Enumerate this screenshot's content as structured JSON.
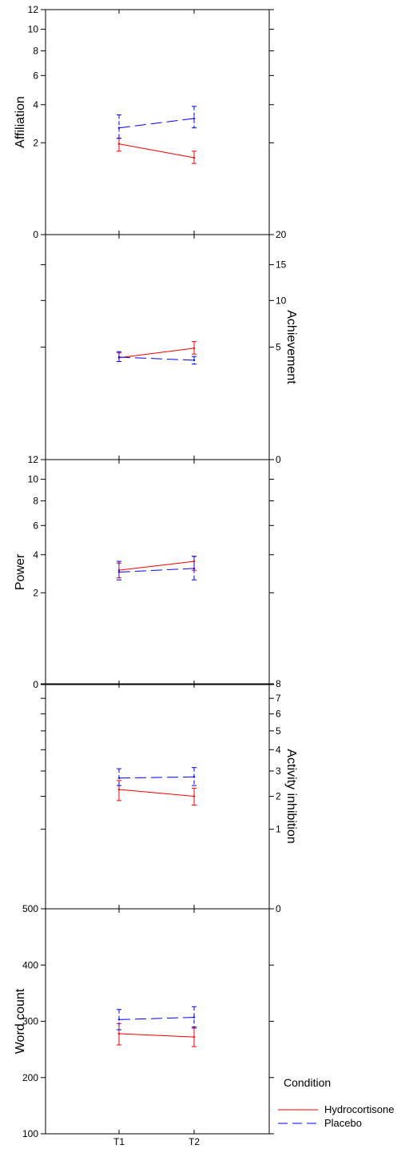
{
  "chart_data": {
    "type": "line",
    "x_tick_labels": [
      "T1",
      "T2"
    ],
    "colors": {
      "Hydrocortisone": "#ff0000",
      "Placebo": "#0000ff",
      "error_bars": "#000000"
    },
    "legend": {
      "title": "Condition",
      "placement": "bottom-right",
      "entries": [
        {
          "label": "Hydrocortisone",
          "color": "#ff0000",
          "style": "solid"
        },
        {
          "label": "Placebo",
          "color": "#0000ff",
          "style": "dashed"
        }
      ]
    },
    "panels": [
      {
        "ylabel": "Affiliation",
        "axis_side": "left",
        "scale": "sqrt",
        "ylim": [
          0,
          12
        ],
        "ticks": [
          0,
          2,
          4,
          6,
          8,
          10,
          12
        ],
        "tick_labels": [
          "0",
          "2",
          "4",
          "6",
          "8",
          "10",
          "12"
        ],
        "series": [
          {
            "name": "Hydrocortisone",
            "values": [
              1.95,
              1.4
            ],
            "lower": [
              1.65,
              1.2
            ],
            "upper": [
              2.2,
              1.65
            ]
          },
          {
            "name": "Placebo",
            "values": [
              2.7,
              3.2
            ],
            "lower": [
              2.2,
              2.7
            ],
            "upper": [
              3.4,
              3.9
            ]
          }
        ]
      },
      {
        "ylabel": "Achievement",
        "axis_side": "right",
        "scale": "sqrt",
        "ylim": [
          0,
          20
        ],
        "ticks": [
          0,
          5,
          10,
          15,
          20
        ],
        "tick_labels": [
          "0",
          "5",
          "10",
          "15",
          "20"
        ],
        "series": [
          {
            "name": "Hydrocortisone",
            "values": [
              4.1,
              4.9
            ],
            "lower": [
              3.8,
              4.4
            ],
            "upper": [
              4.5,
              5.5
            ]
          },
          {
            "name": "Placebo",
            "values": [
              4.15,
              3.9
            ],
            "lower": [
              3.8,
              3.6
            ],
            "upper": [
              4.6,
              4.2
            ]
          }
        ]
      },
      {
        "ylabel": "Power",
        "axis_side": "left",
        "scale": "sqrt",
        "ylim": [
          0,
          12
        ],
        "ticks": [
          0,
          2,
          4,
          6,
          8,
          10,
          12
        ],
        "tick_labels": [
          "0",
          "2",
          "4",
          "6",
          "8",
          "10",
          "12"
        ],
        "series": [
          {
            "name": "Hydrocortisone",
            "values": [
              3.1,
              3.6
            ],
            "lower": [
              2.7,
              3.1
            ],
            "upper": [
              3.5,
              3.9
            ]
          },
          {
            "name": "Placebo",
            "values": [
              3.0,
              3.2
            ],
            "lower": [
              2.6,
              2.6
            ],
            "upper": [
              3.6,
              3.9
            ]
          }
        ]
      },
      {
        "ylabel": "Activity inhibition",
        "axis_side": "right",
        "scale": "sqrt",
        "ylim": [
          0,
          8
        ],
        "ticks": [
          0,
          1,
          2,
          3,
          4,
          5,
          6,
          7,
          8
        ],
        "tick_labels": [
          "0",
          "1",
          "2",
          "3",
          "4",
          "5",
          "6",
          "7",
          "8"
        ],
        "series": [
          {
            "name": "Hydrocortisone",
            "values": [
              2.25,
              2.0
            ],
            "lower": [
              1.85,
              1.7
            ],
            "upper": [
              2.6,
              2.3
            ]
          },
          {
            "name": "Placebo",
            "values": [
              2.7,
              2.75
            ],
            "lower": [
              2.4,
              2.4
            ],
            "upper": [
              3.1,
              3.15
            ]
          }
        ]
      },
      {
        "ylabel": "Word count",
        "axis_side": "left",
        "scale": "linear",
        "ylim": [
          100,
          500
        ],
        "ticks": [
          100,
          200,
          300,
          400,
          500
        ],
        "tick_labels": [
          "100",
          "200",
          "300",
          "400",
          "500"
        ],
        "series": [
          {
            "name": "Hydrocortisone",
            "values": [
              278,
              272
            ],
            "lower": [
              258,
              255
            ],
            "upper": [
              296,
              290
            ]
          },
          {
            "name": "Placebo",
            "values": [
              303,
              307
            ],
            "lower": [
              285,
              288
            ],
            "upper": [
              321,
              326
            ]
          }
        ]
      }
    ]
  }
}
